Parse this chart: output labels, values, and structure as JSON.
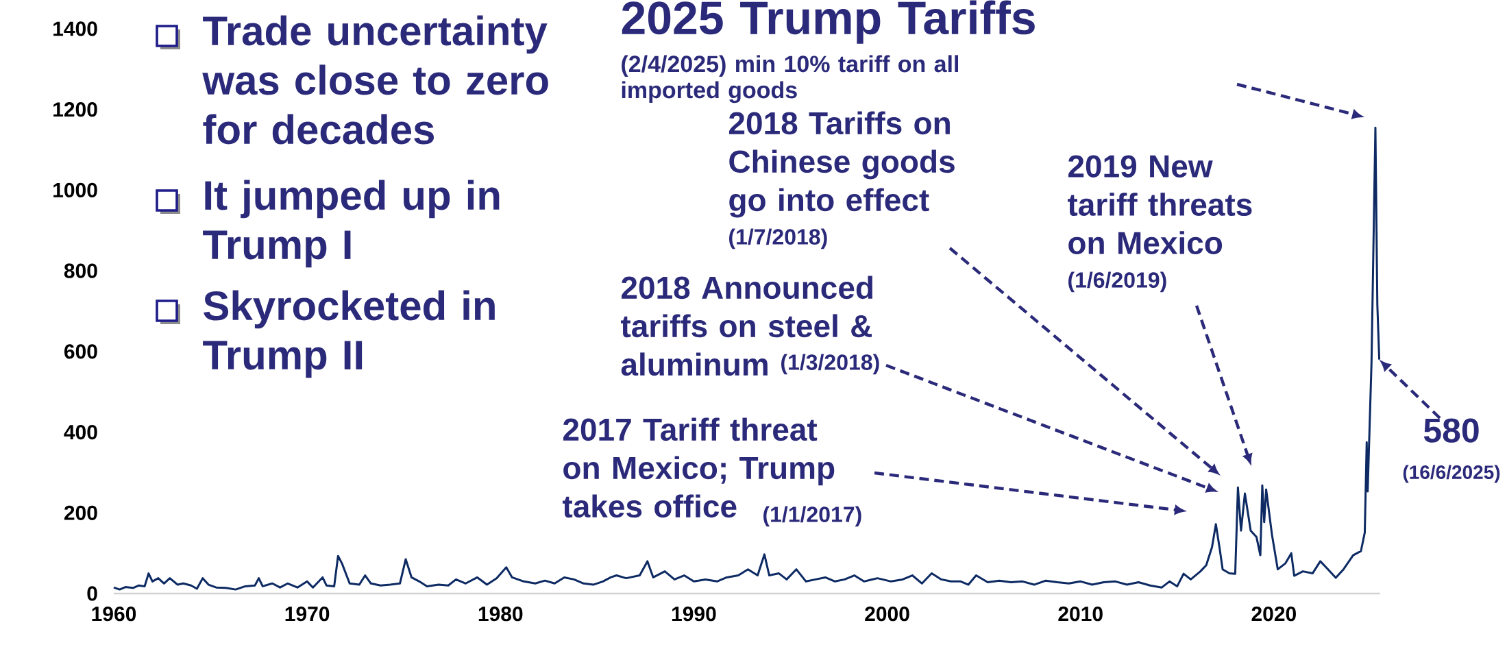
{
  "chart_data": {
    "type": "line",
    "color": "#0d2a63",
    "xlim": [
      1960,
      2025.5
    ],
    "ylim": [
      0,
      1400
    ],
    "xticks": [
      1960,
      1970,
      1980,
      1990,
      2000,
      2010,
      2020
    ],
    "yticks": [
      0,
      200,
      400,
      600,
      800,
      1000,
      1200,
      1400
    ],
    "x": [
      1960.0,
      1960.3,
      1960.6,
      1961.0,
      1961.3,
      1961.6,
      1961.8,
      1962.0,
      1962.3,
      1962.6,
      1962.9,
      1963.3,
      1963.6,
      1964.0,
      1964.3,
      1964.6,
      1964.9,
      1965.3,
      1965.8,
      1966.3,
      1966.8,
      1967.3,
      1967.5,
      1967.7,
      1968.2,
      1968.6,
      1969.0,
      1969.5,
      1970.0,
      1970.3,
      1970.8,
      1971.0,
      1971.4,
      1971.6,
      1971.8,
      1972.2,
      1972.7,
      1973.0,
      1973.3,
      1973.8,
      1974.3,
      1974.8,
      1975.1,
      1975.4,
      1975.8,
      1976.2,
      1976.8,
      1977.3,
      1977.7,
      1978.2,
      1978.8,
      1979.3,
      1979.8,
      1980.3,
      1980.6,
      1981.2,
      1981.8,
      1982.3,
      1982.8,
      1983.3,
      1983.8,
      1984.3,
      1984.8,
      1985.3,
      1985.7,
      1986.0,
      1986.5,
      1987.2,
      1987.6,
      1987.9,
      1988.5,
      1989.0,
      1989.5,
      1990.0,
      1990.6,
      1991.2,
      1991.7,
      1992.3,
      1992.8,
      1993.3,
      1993.65,
      1993.9,
      1994.4,
      1994.8,
      1995.3,
      1995.8,
      1996.3,
      1996.8,
      1997.3,
      1997.8,
      1998.3,
      1998.8,
      1999.5,
      2000.2,
      2000.8,
      2001.3,
      2001.8,
      2002.3,
      2002.8,
      2003.3,
      2003.8,
      2004.2,
      2004.6,
      2005.2,
      2005.8,
      2006.4,
      2007.0,
      2007.6,
      2008.2,
      2008.8,
      2009.4,
      2010.0,
      2010.6,
      2011.2,
      2011.8,
      2012.4,
      2013.0,
      2013.6,
      2014.2,
      2014.6,
      2015.0,
      2015.33,
      2015.7,
      2016.2,
      2016.5,
      2016.8,
      2017.0,
      2017.2,
      2017.35,
      2017.7,
      2018.0,
      2018.14,
      2018.3,
      2018.5,
      2018.8,
      2019.1,
      2019.3,
      2019.4,
      2019.5,
      2019.6,
      2019.9,
      2020.2,
      2020.6,
      2020.9,
      2021.05,
      2021.5,
      2022.0,
      2022.4,
      2022.8,
      2023.2,
      2023.6,
      2024.1,
      2024.5,
      2024.7,
      2024.8,
      2024.85,
      2025.05,
      2025.25,
      2025.35,
      2025.45
    ],
    "values": [
      15,
      10,
      16,
      14,
      20,
      18,
      50,
      30,
      38,
      25,
      38,
      22,
      25,
      20,
      12,
      38,
      22,
      15,
      14,
      10,
      18,
      20,
      38,
      18,
      25,
      15,
      25,
      15,
      30,
      15,
      40,
      20,
      18,
      93,
      75,
      25,
      22,
      45,
      25,
      20,
      22,
      25,
      85,
      40,
      30,
      18,
      22,
      20,
      35,
      25,
      40,
      22,
      38,
      65,
      40,
      30,
      25,
      32,
      25,
      40,
      35,
      25,
      22,
      30,
      40,
      45,
      38,
      45,
      80,
      40,
      55,
      35,
      45,
      30,
      35,
      30,
      40,
      45,
      60,
      45,
      97,
      45,
      50,
      35,
      60,
      30,
      35,
      40,
      30,
      35,
      45,
      30,
      38,
      30,
      35,
      45,
      25,
      50,
      35,
      30,
      30,
      22,
      45,
      28,
      32,
      28,
      30,
      22,
      32,
      28,
      25,
      30,
      22,
      28,
      30,
      22,
      28,
      20,
      15,
      30,
      18,
      49,
      35,
      55,
      70,
      115,
      172,
      110,
      60,
      50,
      49,
      263,
      156,
      248,
      156,
      140,
      95,
      268,
      177,
      258,
      146,
      60,
      75,
      100,
      44,
      55,
      50,
      80,
      60,
      39,
      60,
      95,
      105,
      151,
      375,
      253,
      574,
      1155,
      716,
      580
    ],
    "annotations": [
      "Trade uncertainty was close to zero for decades",
      "It jumped up in Trump I",
      "Skyrocketed in Trump II",
      "2025 Trump Tariffs",
      "(2/4/2025) min 10% tariff on all imported goods",
      "2018 Tariffs on Chinese goods go into effect",
      "(1/7/2018)",
      "2019 New tariff threats on Mexico",
      "(1/6/2019)",
      "2018 Announced tariffs on steel & aluminum",
      "(1/3/2018)",
      "2017 Tariff threat on Mexico; Trump takes office",
      "(1/1/2017)",
      {
        "text": "580",
        "x": 2025.45,
        "y": 580
      },
      "(16/6/2025)"
    ]
  }
}
